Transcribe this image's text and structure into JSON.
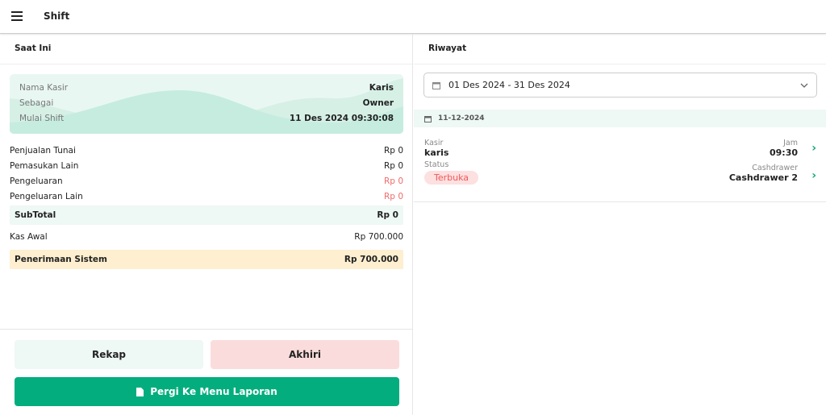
{
  "header": {
    "title": "Shift",
    "menu_icon": "hamburger-icon"
  },
  "current": {
    "title": "Saat Ini",
    "info": [
      {
        "label": "Nama Kasir",
        "value": "Karis"
      },
      {
        "label": "Sebagai",
        "value": "Owner"
      },
      {
        "label": "Mulai Shift",
        "value": "11 Des 2024 09:30:08"
      }
    ],
    "rows": [
      {
        "label": "Penjualan Tunai",
        "value": "Rp 0"
      },
      {
        "label": "Pemasukan Lain",
        "value": "Rp 0"
      },
      {
        "label": "Pengeluaran",
        "value": "Rp 0"
      },
      {
        "label": "Pengeluaran Lain",
        "value": "Rp 0"
      }
    ],
    "subtotal": {
      "label": "SubTotal",
      "value": "Rp 0"
    },
    "kas_awal": {
      "label": "Kas Awal",
      "value": "Rp 700.000"
    },
    "penerimaan": {
      "label": "Penerimaan Sistem",
      "value": "Rp 700.000"
    },
    "buttons": {
      "rekap": "Rekap",
      "akhiri": "Akhiri",
      "laporan": "Pergi Ke Menu Laporan"
    }
  },
  "history": {
    "title": "Riwayat",
    "date_range": "01 Des 2024 - 31 Des 2024",
    "groups": [
      {
        "date": "11-12-2024",
        "items": [
          {
            "kasir_label": "Kasir",
            "kasir": "karis",
            "status_label": "Status",
            "status": "Terbuka",
            "jam_label": "Jam",
            "jam": "09:30",
            "cashdrawer_label": "Cashdrawer",
            "cashdrawer": "Cashdrawer 2"
          }
        ]
      }
    ]
  },
  "colors": {
    "primary": "#04ad7e",
    "danger": "#f06a6a",
    "info_bg": "#e9f7f2",
    "warn_bg": "#fdefd0"
  }
}
